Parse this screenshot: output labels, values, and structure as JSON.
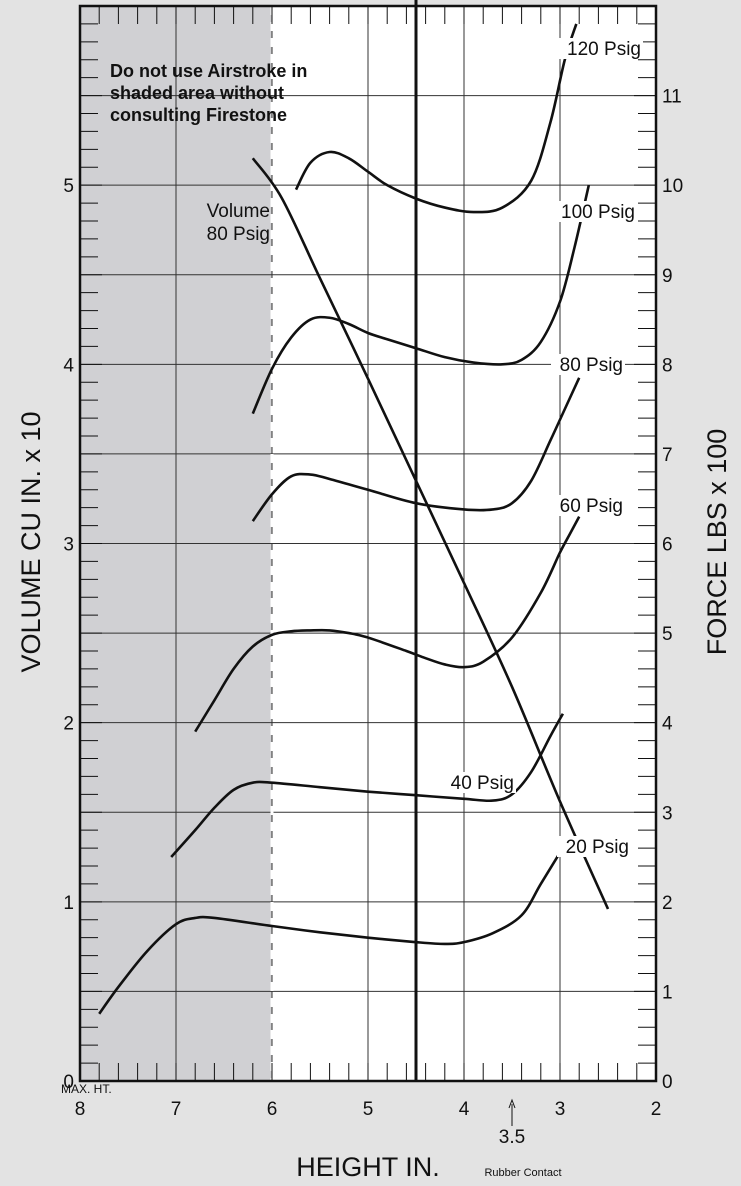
{
  "chart_data": {
    "type": "line",
    "xlabel": "HEIGHT IN.",
    "ylabel_left": "VOLUME CU IN. x 10",
    "ylabel_right": "FORCE LBS x 100",
    "x_reversed": true,
    "xlim": [
      8,
      2
    ],
    "ylim_left": [
      0,
      6
    ],
    "ylim_right": [
      0,
      12
    ],
    "grid": true,
    "x_ticks": [
      "8",
      "7",
      "6",
      "5",
      "4",
      "3",
      "2"
    ],
    "y_left_ticks": [
      "0",
      "1",
      "2",
      "3",
      "4",
      "5"
    ],
    "y_right_ticks": [
      "0",
      "1",
      "2",
      "3",
      "4",
      "5",
      "6",
      "7",
      "8",
      "9",
      "10",
      "11"
    ],
    "annotations": {
      "max_height": "MAX. HT.",
      "shaded_note": [
        "Do not use Airstroke in",
        "shaded area without",
        "consulting Firestone"
      ],
      "volume_label": [
        "Volume",
        "80 Psig"
      ],
      "rubber_contact_value": "3.5",
      "rubber_contact_label": "Rubber Contact"
    },
    "shaded_region": {
      "from_height": 8,
      "to_height": 6
    },
    "design_height_line": 4.5,
    "series": [
      {
        "name": "Volume 80 Psig",
        "axis": "left",
        "x": [
          6.2,
          5.9,
          5.5,
          5.0,
          4.5,
          4.0,
          3.5,
          3.0,
          2.5
        ],
        "y": [
          5.15,
          4.93,
          4.48,
          3.92,
          3.35,
          2.78,
          2.2,
          1.56,
          0.96
        ]
      },
      {
        "name": "120 Psig",
        "axis": "right",
        "x": [
          5.75,
          5.6,
          5.4,
          5.2,
          5.0,
          4.8,
          4.5,
          4.2,
          3.9,
          3.6,
          3.3,
          3.1,
          2.95,
          2.83
        ],
        "y": [
          9.95,
          10.25,
          10.37,
          10.3,
          10.15,
          10.0,
          9.85,
          9.75,
          9.7,
          9.75,
          10.05,
          10.7,
          11.4,
          11.8
        ]
      },
      {
        "name": "100 Psig",
        "axis": "right",
        "x": [
          6.2,
          6.0,
          5.8,
          5.6,
          5.4,
          5.2,
          5.0,
          4.8,
          4.5,
          4.2,
          3.9,
          3.6,
          3.4,
          3.2,
          3.0,
          2.85,
          2.7
        ],
        "y": [
          7.45,
          7.95,
          8.3,
          8.5,
          8.52,
          8.45,
          8.35,
          8.28,
          8.18,
          8.08,
          8.02,
          8.0,
          8.05,
          8.25,
          8.7,
          9.3,
          10.0
        ]
      },
      {
        "name": "80 Psig",
        "axis": "right",
        "x": [
          6.2,
          6.0,
          5.8,
          5.6,
          5.4,
          5.0,
          4.5,
          4.0,
          3.7,
          3.5,
          3.3,
          3.1,
          2.95,
          2.8
        ],
        "y": [
          6.25,
          6.55,
          6.75,
          6.77,
          6.72,
          6.6,
          6.45,
          6.38,
          6.38,
          6.45,
          6.7,
          7.15,
          7.5,
          7.85
        ]
      },
      {
        "name": "60 Psig",
        "axis": "right",
        "x": [
          6.8,
          6.6,
          6.4,
          6.2,
          6.0,
          5.8,
          5.6,
          5.4,
          5.2,
          5.0,
          4.6,
          4.4,
          4.2,
          4.0,
          3.8,
          3.5,
          3.2,
          3.0,
          2.9,
          2.8
        ],
        "y": [
          3.9,
          4.25,
          4.6,
          4.85,
          4.98,
          5.02,
          5.03,
          5.03,
          5.0,
          4.95,
          4.8,
          4.72,
          4.65,
          4.62,
          4.68,
          4.95,
          5.45,
          5.9,
          6.1,
          6.3
        ]
      },
      {
        "name": "40 Psig",
        "axis": "right",
        "x": [
          7.05,
          6.8,
          6.6,
          6.4,
          6.2,
          6.0,
          5.5,
          5.0,
          4.5,
          4.0,
          3.7,
          3.5,
          3.3,
          3.1,
          2.97
        ],
        "y": [
          2.5,
          2.8,
          3.05,
          3.25,
          3.33,
          3.33,
          3.28,
          3.23,
          3.19,
          3.15,
          3.13,
          3.2,
          3.45,
          3.85,
          4.1
        ]
      },
      {
        "name": "20 Psig",
        "axis": "right",
        "x": [
          7.8,
          7.6,
          7.3,
          7.0,
          6.8,
          6.6,
          6.0,
          5.5,
          5.0,
          4.5,
          4.2,
          4.0,
          3.7,
          3.4,
          3.2,
          3.0
        ],
        "y": [
          0.75,
          1.05,
          1.45,
          1.75,
          1.82,
          1.82,
          1.73,
          1.66,
          1.6,
          1.55,
          1.53,
          1.55,
          1.65,
          1.85,
          2.2,
          2.55
        ]
      }
    ],
    "series_labels": [
      "120 Psig",
      "100 Psig",
      "80 Psig",
      "60 Psig",
      "40 Psig",
      "20 Psig"
    ]
  }
}
